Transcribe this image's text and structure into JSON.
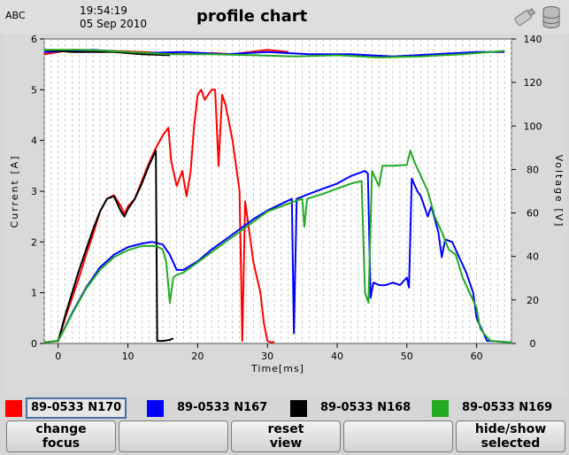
{
  "header": {
    "left_label": "ABC",
    "time": "19:54:19",
    "date": "05 Sep 2010",
    "title": "profile chart"
  },
  "legend": [
    {
      "label": "89-0533 N170",
      "color": "#ff0000",
      "focused": true
    },
    {
      "label": "89-0533 N167",
      "color": "#0000ff",
      "focused": false
    },
    {
      "label": "89-0533 N168",
      "color": "#000000",
      "focused": false
    },
    {
      "label": "89-0533 N169",
      "color": "#22aa22",
      "focused": false
    }
  ],
  "buttons": [
    {
      "label": "change\nfocus"
    },
    {
      "label": ""
    },
    {
      "label": "reset\nview"
    },
    {
      "label": ""
    },
    {
      "label": "hide/show\nselected"
    }
  ],
  "chart_data": {
    "type": "line",
    "xlabel": "Time[ms]",
    "ylabel_left": "Current [A]",
    "ylabel_right": "Voltage [V]",
    "xlim": [
      -2,
      65
    ],
    "ylim_left": [
      0,
      6
    ],
    "ylim_right": [
      0,
      140
    ],
    "x_ticks": [
      0,
      10,
      20,
      30,
      40,
      50,
      60
    ],
    "y_ticks_left": [
      0,
      1,
      2,
      3,
      4,
      5,
      6
    ],
    "y_ticks_right": [
      0,
      20,
      40,
      60,
      80,
      100,
      120,
      140
    ],
    "grid": "vertical dashed",
    "current_series": [
      {
        "name": "89-0533 N170",
        "color": "#ff0000",
        "points": [
          [
            -2,
            0.02
          ],
          [
            0,
            0.05
          ],
          [
            1,
            0.5
          ],
          [
            2,
            0.9
          ],
          [
            3,
            1.3
          ],
          [
            4,
            1.75
          ],
          [
            5,
            2.15
          ],
          [
            6,
            2.6
          ],
          [
            7,
            2.85
          ],
          [
            8,
            2.92
          ],
          [
            9,
            2.7
          ],
          [
            9.5,
            2.55
          ],
          [
            10,
            2.7
          ],
          [
            11,
            2.85
          ],
          [
            12,
            3.2
          ],
          [
            13,
            3.55
          ],
          [
            14,
            3.85
          ],
          [
            15,
            4.1
          ],
          [
            15.8,
            4.25
          ],
          [
            16.2,
            3.6
          ],
          [
            17,
            3.1
          ],
          [
            17.8,
            3.4
          ],
          [
            18.4,
            2.9
          ],
          [
            19,
            3.4
          ],
          [
            19.5,
            4.3
          ],
          [
            20,
            4.9
          ],
          [
            20.5,
            5.0
          ],
          [
            21,
            4.8
          ],
          [
            22,
            5.0
          ],
          [
            22.5,
            5.0
          ],
          [
            23,
            3.5
          ],
          [
            23.5,
            4.9
          ],
          [
            24,
            4.7
          ],
          [
            25,
            4.0
          ],
          [
            26,
            3.0
          ],
          [
            26.4,
            0.05
          ],
          [
            26.8,
            2.8
          ],
          [
            27.5,
            2.1
          ],
          [
            28,
            1.6
          ],
          [
            29,
            1.0
          ],
          [
            29.5,
            0.4
          ],
          [
            30,
            0.05
          ],
          [
            30.5,
            0.02
          ],
          [
            31,
            0.03
          ]
        ]
      },
      {
        "name": "89-0533 N167",
        "color": "#0000ff",
        "points": [
          [
            -2,
            0.02
          ],
          [
            0,
            0.05
          ],
          [
            2,
            0.6
          ],
          [
            4,
            1.1
          ],
          [
            6,
            1.5
          ],
          [
            8,
            1.75
          ],
          [
            10,
            1.9
          ],
          [
            12,
            1.97
          ],
          [
            13.5,
            2.0
          ],
          [
            15,
            1.95
          ],
          [
            16,
            1.75
          ],
          [
            17,
            1.45
          ],
          [
            18,
            1.45
          ],
          [
            20,
            1.62
          ],
          [
            22,
            1.85
          ],
          [
            24,
            2.05
          ],
          [
            26,
            2.25
          ],
          [
            28,
            2.45
          ],
          [
            30,
            2.62
          ],
          [
            32,
            2.75
          ],
          [
            33.5,
            2.85
          ],
          [
            33.8,
            0.2
          ],
          [
            34.2,
            2.85
          ],
          [
            36,
            2.95
          ],
          [
            38,
            3.05
          ],
          [
            40,
            3.15
          ],
          [
            42,
            3.3
          ],
          [
            44,
            3.4
          ],
          [
            44.4,
            3.35
          ],
          [
            44.8,
            0.9
          ],
          [
            45.2,
            1.2
          ],
          [
            46,
            1.15
          ],
          [
            47,
            1.15
          ],
          [
            48,
            1.2
          ],
          [
            49,
            1.15
          ],
          [
            50,
            1.3
          ],
          [
            50.3,
            1.1
          ],
          [
            50.7,
            3.25
          ],
          [
            51.5,
            3.0
          ],
          [
            52,
            2.9
          ],
          [
            53,
            2.5
          ],
          [
            53.5,
            2.7
          ],
          [
            54.5,
            2.2
          ],
          [
            55,
            1.7
          ],
          [
            55.5,
            2.05
          ],
          [
            56.5,
            2.0
          ],
          [
            57.5,
            1.7
          ],
          [
            58.5,
            1.4
          ],
          [
            59.5,
            1.0
          ],
          [
            60,
            0.5
          ],
          [
            60.5,
            0.35
          ],
          [
            61,
            0.2
          ],
          [
            61.5,
            0.05
          ],
          [
            62,
            0.05
          ],
          [
            65,
            0.02
          ]
        ]
      },
      {
        "name": "89-0533 N168",
        "color": "#000000",
        "points": [
          [
            -2,
            0.02
          ],
          [
            0,
            0.05
          ],
          [
            1,
            0.55
          ],
          [
            2,
            1.0
          ],
          [
            3,
            1.45
          ],
          [
            4,
            1.85
          ],
          [
            5,
            2.25
          ],
          [
            6,
            2.6
          ],
          [
            7,
            2.85
          ],
          [
            8,
            2.9
          ],
          [
            9,
            2.6
          ],
          [
            9.5,
            2.5
          ],
          [
            10,
            2.65
          ],
          [
            11,
            2.85
          ],
          [
            12,
            3.15
          ],
          [
            13,
            3.5
          ],
          [
            14,
            3.8
          ],
          [
            14.2,
            0.05
          ],
          [
            15,
            0.05
          ],
          [
            16,
            0.07
          ],
          [
            16.5,
            0.1
          ]
        ]
      },
      {
        "name": "89-0533 N169",
        "color": "#22aa22",
        "points": [
          [
            -2,
            0.02
          ],
          [
            0,
            0.05
          ],
          [
            2,
            0.58
          ],
          [
            4,
            1.08
          ],
          [
            6,
            1.45
          ],
          [
            8,
            1.7
          ],
          [
            10,
            1.84
          ],
          [
            12,
            1.92
          ],
          [
            14,
            1.92
          ],
          [
            15,
            1.85
          ],
          [
            15.5,
            1.6
          ],
          [
            16,
            0.8
          ],
          [
            16.5,
            1.3
          ],
          [
            17,
            1.35
          ],
          [
            18,
            1.4
          ],
          [
            20,
            1.6
          ],
          [
            22,
            1.8
          ],
          [
            24,
            2.0
          ],
          [
            26,
            2.2
          ],
          [
            28,
            2.4
          ],
          [
            30,
            2.6
          ],
          [
            32,
            2.7
          ],
          [
            33.5,
            2.78
          ],
          [
            35,
            2.85
          ],
          [
            35.3,
            2.3
          ],
          [
            35.7,
            2.85
          ],
          [
            38,
            2.95
          ],
          [
            40,
            3.05
          ],
          [
            42,
            3.15
          ],
          [
            43.5,
            3.2
          ],
          [
            44,
            1.0
          ],
          [
            44.5,
            0.8
          ],
          [
            45,
            3.4
          ],
          [
            46,
            3.1
          ],
          [
            46.5,
            3.5
          ],
          [
            48,
            3.5
          ],
          [
            50,
            3.52
          ],
          [
            50.5,
            3.8
          ],
          [
            51,
            3.6
          ],
          [
            52,
            3.3
          ],
          [
            53,
            3.0
          ],
          [
            54,
            2.5
          ],
          [
            55,
            2.2
          ],
          [
            56,
            1.85
          ],
          [
            57,
            1.75
          ],
          [
            58,
            1.3
          ],
          [
            59,
            1.0
          ],
          [
            60,
            0.7
          ],
          [
            60.5,
            0.3
          ],
          [
            61,
            0.2
          ],
          [
            62,
            0.05
          ],
          [
            65,
            0.02
          ]
        ]
      }
    ],
    "voltage_series": [
      {
        "name": "89-0533 N170",
        "color": "#ff0000",
        "points": [
          [
            -2,
            133
          ],
          [
            2,
            135
          ],
          [
            8,
            134.5
          ],
          [
            12,
            134
          ],
          [
            18,
            133
          ],
          [
            22,
            133.5
          ],
          [
            25,
            133
          ],
          [
            30,
            135
          ],
          [
            33,
            134
          ]
        ]
      },
      {
        "name": "89-0533 N167",
        "color": "#0000ff",
        "points": [
          [
            -2,
            134
          ],
          [
            5,
            135
          ],
          [
            12,
            133.5
          ],
          [
            18,
            134
          ],
          [
            24,
            133
          ],
          [
            30,
            134
          ],
          [
            36,
            133
          ],
          [
            42,
            133
          ],
          [
            48,
            132
          ],
          [
            54,
            133
          ],
          [
            60,
            134
          ],
          [
            64,
            134
          ]
        ]
      },
      {
        "name": "89-0533 N168",
        "color": "#000000",
        "points": [
          [
            -2,
            135
          ],
          [
            2,
            134
          ],
          [
            8,
            134
          ],
          [
            12,
            133
          ],
          [
            16,
            132.5
          ]
        ]
      },
      {
        "name": "89-0533 N169",
        "color": "#22aa22",
        "points": [
          [
            -2,
            135
          ],
          [
            4,
            135
          ],
          [
            10,
            134
          ],
          [
            16,
            133
          ],
          [
            22,
            133
          ],
          [
            28,
            132.5
          ],
          [
            34,
            132
          ],
          [
            40,
            132.5
          ],
          [
            46,
            131.5
          ],
          [
            52,
            132
          ],
          [
            58,
            133
          ],
          [
            62,
            134
          ],
          [
            64,
            134.5
          ]
        ]
      }
    ]
  }
}
